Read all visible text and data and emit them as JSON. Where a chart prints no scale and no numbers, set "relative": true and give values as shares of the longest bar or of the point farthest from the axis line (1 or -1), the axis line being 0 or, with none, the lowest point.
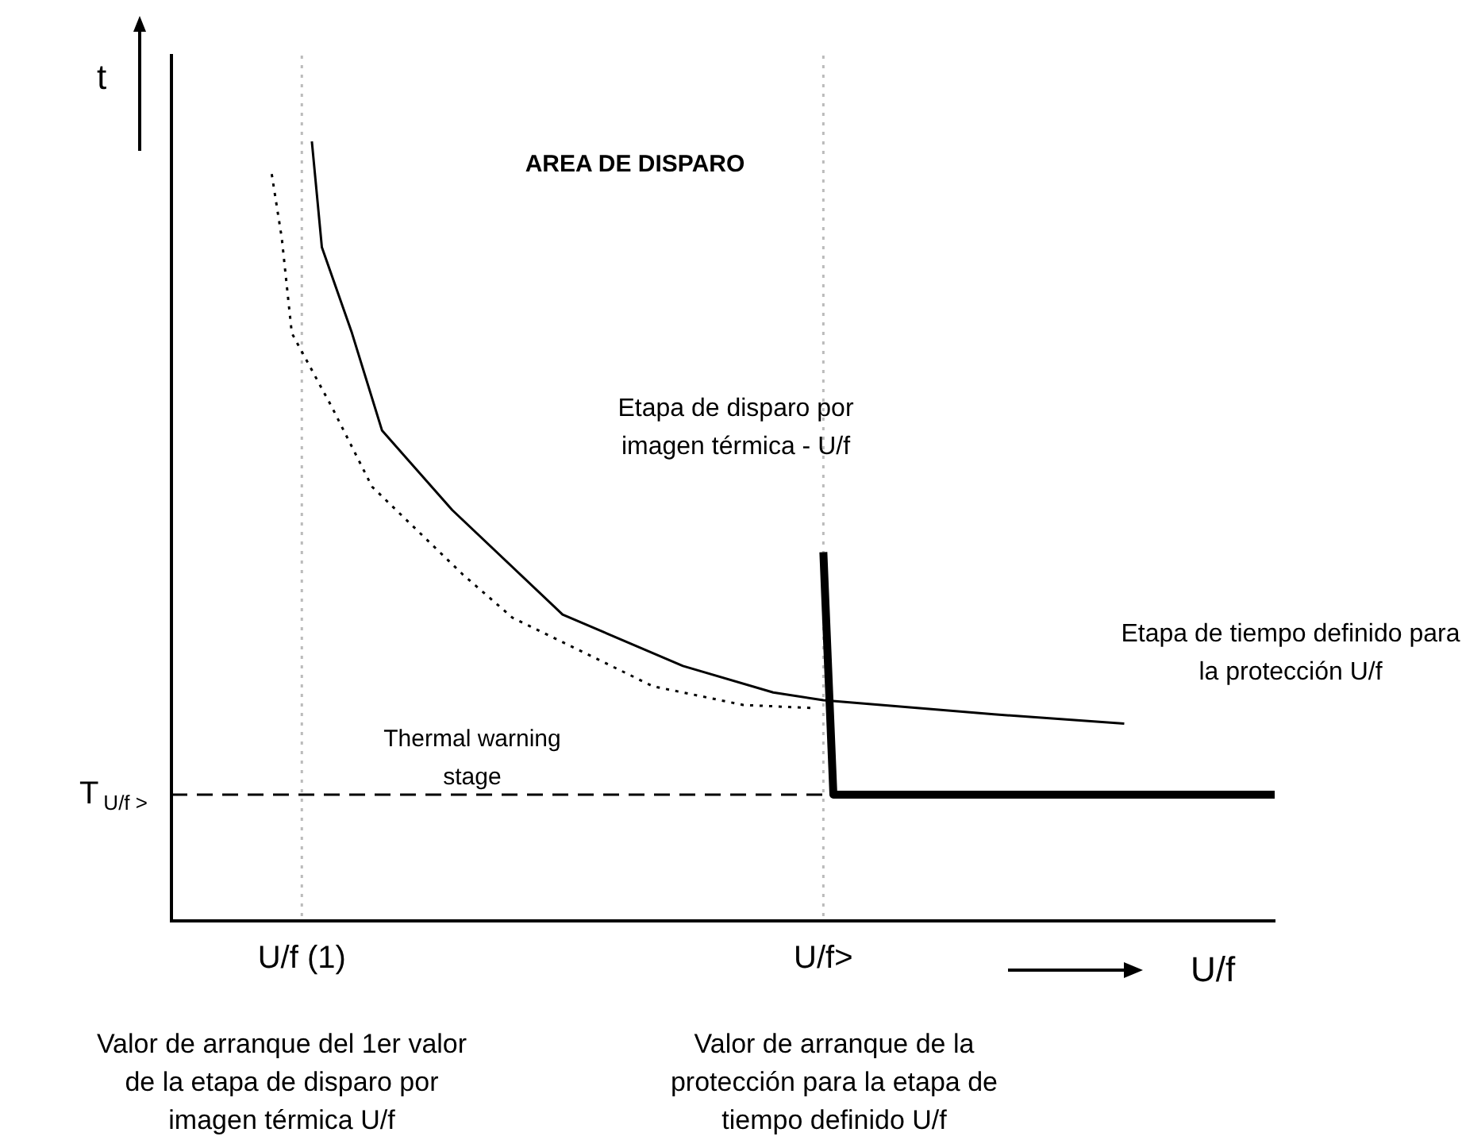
{
  "chart_data": {
    "type": "line",
    "relative": true,
    "xlabel": "U/f",
    "ylabel": "t",
    "grid": false,
    "legend": false,
    "marker": "none",
    "categories": [
      null,
      null,
      null,
      null,
      null,
      null,
      null,
      null,
      null,
      null,
      null,
      null,
      null,
      "U/f (1)",
      null,
      null,
      null,
      null,
      null,
      null,
      null,
      null,
      null,
      null,
      null,
      null,
      null,
      null,
      null,
      null,
      null,
      null,
      null,
      null,
      null,
      null,
      null,
      null,
      null,
      null,
      null,
      null,
      null,
      null,
      null,
      null,
      null,
      null,
      null,
      null,
      null,
      null,
      null,
      null,
      null,
      null,
      null,
      null,
      null,
      null,
      null,
      null,
      null,
      null,
      null,
      "U/f>",
      null,
      null,
      null,
      null,
      null,
      null,
      null,
      null,
      null,
      null,
      null,
      null,
      null,
      null,
      null,
      null,
      null,
      null,
      null,
      null,
      null,
      null,
      null,
      null,
      null,
      null,
      null,
      null,
      null,
      null,
      null,
      null,
      null,
      null,
      null,
      null,
      null,
      null,
      null,
      null,
      null,
      null,
      null,
      null,
      null
    ],
    "series": [
      {
        "color": "#000000",
        "line_style": "solid",
        "values": [
          null,
          null,
          null,
          null,
          null,
          null,
          null,
          null,
          null,
          null,
          null,
          null,
          null,
          null,
          1,
          0.864,
          null,
          null,
          0.754,
          null,
          null,
          0.629,
          null,
          null,
          null,
          null,
          null,
          null,
          0.527,
          null,
          null,
          null,
          null,
          null,
          null,
          null,
          null,
          null,
          null,
          0.393,
          null,
          null,
          null,
          null,
          null,
          null,
          null,
          null,
          null,
          null,
          null,
          0.327,
          null,
          null,
          null,
          null,
          null,
          null,
          null,
          null,
          0.293,
          null,
          null,
          null,
          null,
          0.283,
          null,
          null,
          null,
          null,
          null,
          null,
          null,
          null,
          null,
          null,
          null,
          null,
          null,
          null,
          null,
          null,
          0.265,
          null,
          null,
          null,
          null,
          null,
          null,
          null,
          null,
          null,
          null,
          null,
          null,
          0.253,
          null,
          null,
          null,
          null,
          null,
          null,
          null,
          null,
          null,
          null,
          null,
          null,
          null,
          null,
          null
        ]
      },
      {
        "color": "#000000",
        "line_style": "dotted",
        "values": [
          null,
          null,
          null,
          null,
          null,
          null,
          null,
          null,
          null,
          null,
          0.958,
          0.876,
          0.754,
          null,
          null,
          null,
          0.659,
          null,
          null,
          null,
          0.557,
          null,
          null,
          null,
          null,
          null,
          null,
          null,
          null,
          0.445,
          null,
          null,
          null,
          null,
          0.389,
          null,
          null,
          null,
          null,
          null,
          null,
          null,
          null,
          null,
          null,
          null,
          null,
          null,
          0.301,
          null,
          null,
          null,
          null,
          null,
          null,
          null,
          null,
          0.277,
          null,
          null,
          null,
          null,
          null,
          null,
          0.273,
          null,
          null,
          null,
          null,
          null,
          null,
          null,
          null,
          null,
          null,
          null,
          null,
          null,
          null,
          null,
          null,
          null,
          null,
          null,
          null,
          null,
          null,
          null,
          null,
          null,
          null,
          null,
          null,
          null,
          null,
          null,
          null,
          null,
          null,
          null,
          null,
          null,
          null,
          null,
          null,
          null,
          null,
          null,
          null,
          null,
          null
        ]
      },
      {
        "color": "#000000",
        "line_style": "solid",
        "values": [
          null,
          null,
          null,
          null,
          null,
          null,
          null,
          null,
          null,
          null,
          null,
          null,
          null,
          null,
          null,
          null,
          null,
          null,
          null,
          null,
          null,
          null,
          null,
          null,
          null,
          null,
          null,
          null,
          null,
          null,
          null,
          null,
          null,
          null,
          null,
          null,
          null,
          null,
          null,
          null,
          null,
          null,
          null,
          null,
          null,
          null,
          null,
          null,
          null,
          null,
          null,
          null,
          null,
          null,
          null,
          null,
          null,
          null,
          null,
          null,
          null,
          null,
          null,
          null,
          null,
          0.473,
          0.162,
          null,
          null,
          null,
          null,
          null,
          null,
          null,
          null,
          null,
          null,
          null,
          null,
          null,
          null,
          null,
          null,
          null,
          null,
          null,
          null,
          null,
          null,
          null,
          null,
          null,
          null,
          null,
          null,
          null,
          null,
          null,
          null,
          null,
          null,
          null,
          null,
          null,
          null,
          null,
          null,
          null,
          null,
          null,
          0.162
        ]
      }
    ],
    "ref_lines": [
      {
        "axis": "y",
        "value": 0.162,
        "label": "T$_{U/f >}$",
        "color": "#000000",
        "line_style": "dashed"
      },
      {
        "axis": "x",
        "value": "U/f (1)",
        "color": "#bbbbbb",
        "line_style": "dotted"
      },
      {
        "axis": "x",
        "value": "U/f>",
        "color": "#bbbbbb",
        "line_style": "dotted"
      }
    ],
    "annotations": [
      "AREA DE DISPARO",
      "Etapa de disparo por imagen térmica - U/f",
      "Thermal warning stage",
      "Etapa de tiempo definido para la protección U/f",
      "Valor de arranque del 1er valor de la etapa de disparo por imagen térmica U/f",
      "Valor de arranque de la protección para la etapa de tiempo definido U/f"
    ]
  }
}
